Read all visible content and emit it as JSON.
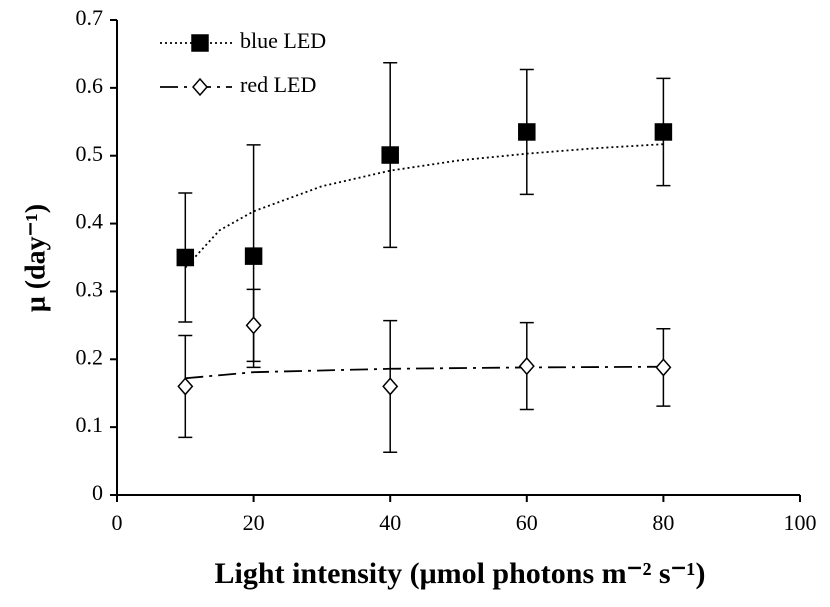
{
  "chart_data": {
    "type": "scatter",
    "xlabel": "Light intensity (μmol photons m⁻² s⁻¹)",
    "ylabel": "μ (day⁻¹)",
    "x": [
      10,
      20,
      40,
      60,
      80
    ],
    "series": [
      {
        "name": "blue LED",
        "color": "#000000",
        "marker": "square",
        "filled": true,
        "line_style": "dotted",
        "values": [
          0.35,
          0.352,
          0.501,
          0.535,
          0.535
        ],
        "errors": [
          0.095,
          0.164,
          0.136,
          0.092,
          0.079
        ],
        "trend": {
          "x": [
            10,
            15,
            20,
            30,
            40,
            50,
            60,
            70,
            80
          ],
          "values": [
            0.335,
            0.39,
            0.418,
            0.455,
            0.478,
            0.493,
            0.503,
            0.511,
            0.517
          ]
        }
      },
      {
        "name": "red LED",
        "color": "#000000",
        "marker": "diamond",
        "filled": false,
        "line_style": "dashdot",
        "values": [
          0.16,
          0.25,
          0.16,
          0.19,
          0.188
        ],
        "errors": [
          0.075,
          0.053,
          0.097,
          0.064,
          0.057
        ],
        "trend": {
          "x": [
            10,
            20,
            40,
            60,
            80
          ],
          "values": [
            0.172,
            0.181,
            0.186,
            0.188,
            0.189
          ]
        }
      }
    ],
    "xlim": [
      0,
      100
    ],
    "xticks": [
      0,
      20,
      40,
      60,
      80,
      100
    ],
    "ylim": [
      0,
      0.7
    ],
    "yticks": [
      0,
      0.1,
      0.2,
      0.3,
      0.4,
      0.5,
      0.6,
      0.7
    ],
    "grid": false,
    "legend": "upper left"
  }
}
